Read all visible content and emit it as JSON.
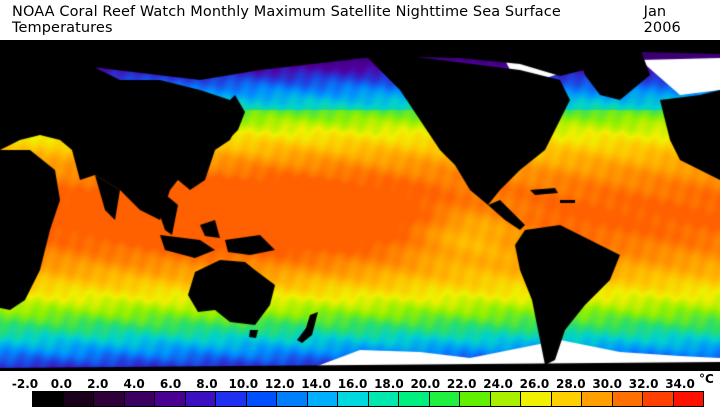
{
  "title": {
    "text": "NOAA Coral Reef Watch Monthly Maximum Satellite Nighttime Sea Surface Temperatures",
    "date": "Jan 2006"
  },
  "legend": {
    "tick_labels": [
      "-2.0",
      "0.0",
      "2.0",
      "4.0",
      "6.0",
      "8.0",
      "10.0",
      "12.0",
      "14.0",
      "16.0",
      "18.0",
      "20.0",
      "22.0",
      "24.0",
      "26.0",
      "28.0",
      "30.0",
      "32.0",
      "34.0"
    ],
    "unit": "°C",
    "colors": [
      "#000000",
      "#1a001a",
      "#30003a",
      "#3c0060",
      "#4a0090",
      "#3a10c0",
      "#2030f0",
      "#0050ff",
      "#0080ff",
      "#00b0ff",
      "#00d8e0",
      "#00e8b0",
      "#00f080",
      "#20f040",
      "#60f000",
      "#a8f000",
      "#f0f000",
      "#ffd000",
      "#ffa000",
      "#ff7000",
      "#ff4000",
      "#ff1000"
    ]
  },
  "map": {
    "land_color": "#000000",
    "ice_color": "#ffffff",
    "palette_cold_to_warm": [
      "#3a0070",
      "#5000a0",
      "#2040e0",
      "#0090ff",
      "#00d0d0",
      "#30e060",
      "#90f000",
      "#f0f000",
      "#ffc000",
      "#ff9000",
      "#ff6000"
    ]
  }
}
